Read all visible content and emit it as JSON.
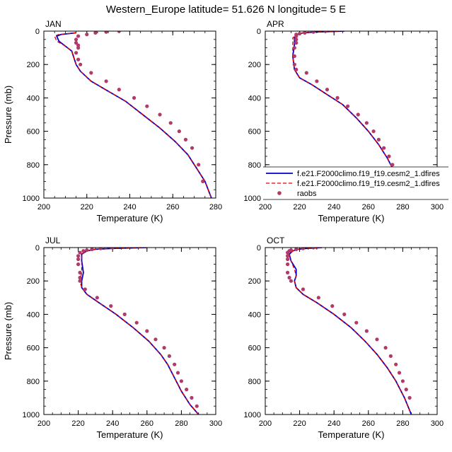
{
  "title": "Western_Europe  latitude= 51.626 N longitude= 5 E",
  "legend": {
    "entries": [
      {
        "label": "f.e21.F2000climo.f19_f19.cesm2_1.dfires",
        "color": "#0000cc",
        "style": "solid"
      },
      {
        "label": "f.e21.F2000climo.f19_f19.cesm2_1.dfires",
        "color": "#dd0000",
        "style": "dashed"
      },
      {
        "label": "raobs",
        "color": "#b03a6a",
        "style": "marker"
      }
    ]
  },
  "chart_data": [
    {
      "type": "line",
      "panel": "JAN",
      "title": "JAN",
      "xlabel": "Temperature (K)",
      "ylabel": "Pressure (mb)",
      "xlim": [
        200,
        280
      ],
      "ylim": [
        1000,
        0
      ],
      "xticks": [
        200,
        220,
        240,
        260,
        280
      ],
      "yticks": [
        0,
        200,
        400,
        600,
        800,
        1000
      ],
      "series": [
        {
          "name": "f.e21.F2000climo.f19_f19.cesm2_1.dfires",
          "color": "#0000cc",
          "style": "solid",
          "x": [
            215,
            208,
            206,
            207,
            210,
            213,
            214,
            215,
            217,
            222,
            230,
            238,
            246,
            254,
            261,
            267,
            271,
            275,
            278
          ],
          "y": [
            10,
            20,
            30,
            60,
            90,
            120,
            160,
            200,
            240,
            300,
            360,
            420,
            500,
            580,
            660,
            740,
            820,
            900,
            1000
          ]
        },
        {
          "name": "f.e21.F2000climo.f19_f19.cesm2_1.dfires",
          "color": "#dd0000",
          "style": "dashed",
          "x": [
            215,
            207,
            205,
            206,
            210,
            213,
            214,
            215,
            217,
            222,
            230,
            238,
            246,
            254,
            261,
            267,
            271,
            275,
            278
          ],
          "y": [
            10,
            20,
            30,
            60,
            90,
            120,
            160,
            200,
            240,
            300,
            360,
            420,
            500,
            580,
            660,
            740,
            820,
            900,
            1000
          ]
        },
        {
          "name": "raobs",
          "color": "#b03a6a",
          "style": "marker",
          "x": [
            235,
            229,
            224,
            220,
            216,
            215,
            215,
            216,
            216,
            215,
            216,
            217,
            222,
            229,
            235,
            242,
            248,
            254,
            259,
            263,
            266,
            269,
            272,
            274
          ],
          "y": [
            0,
            5,
            10,
            20,
            30,
            50,
            70,
            85,
            100,
            130,
            170,
            200,
            250,
            300,
            350,
            400,
            450,
            500,
            550,
            600,
            650,
            700,
            800,
            900
          ]
        }
      ]
    },
    {
      "type": "line",
      "panel": "APR",
      "title": "APR",
      "xlabel": "Temperature (K)",
      "ylabel": "",
      "xlim": [
        200,
        300
      ],
      "ylim": [
        1000,
        0
      ],
      "xticks": [
        200,
        220,
        240,
        260,
        280,
        300
      ],
      "yticks": [
        0,
        200,
        400,
        600,
        800,
        1000
      ],
      "series": [
        {
          "name": "f.e21.F2000climo.f19_f19.cesm2_1.dfires",
          "color": "#0000cc",
          "style": "solid",
          "x": [
            246,
            230,
            222,
            219,
            217,
            217,
            216,
            217,
            220,
            227,
            236,
            245,
            253,
            260,
            266,
            271,
            276,
            282
          ],
          "y": [
            0,
            5,
            10,
            20,
            40,
            80,
            150,
            230,
            280,
            320,
            380,
            440,
            520,
            600,
            680,
            760,
            860,
            1000
          ]
        },
        {
          "name": "f.e21.F2000climo.f19_f19.cesm2_1.dfires",
          "color": "#dd0000",
          "style": "dashed",
          "x": [
            246,
            230,
            222,
            219,
            216,
            216,
            216,
            217,
            220,
            227,
            236,
            245,
            253,
            260,
            266,
            271,
            276,
            282
          ],
          "y": [
            0,
            5,
            10,
            20,
            40,
            80,
            150,
            230,
            280,
            320,
            380,
            440,
            520,
            600,
            680,
            760,
            860,
            1000
          ]
        },
        {
          "name": "raobs",
          "color": "#b03a6a",
          "style": "marker",
          "x": [
            235,
            228,
            223,
            220,
            218,
            218,
            218,
            218,
            217,
            217,
            217,
            218,
            224,
            230,
            236,
            242,
            248,
            254,
            259,
            263,
            266,
            269,
            272,
            274,
            276,
            278,
            280
          ],
          "y": [
            0,
            5,
            10,
            15,
            20,
            30,
            50,
            70,
            100,
            150,
            200,
            230,
            250,
            300,
            350,
            400,
            450,
            500,
            550,
            600,
            650,
            700,
            750,
            800,
            850,
            900,
            950
          ]
        }
      ]
    },
    {
      "type": "line",
      "panel": "JUL",
      "title": "JUL",
      "xlabel": "Temperature (K)",
      "ylabel": "Pressure (mb)",
      "xlim": [
        200,
        300
      ],
      "ylim": [
        1000,
        0
      ],
      "xticks": [
        200,
        220,
        240,
        260,
        280,
        300
      ],
      "yticks": [
        0,
        200,
        400,
        600,
        800,
        1000
      ],
      "series": [
        {
          "name": "f.e21.F2000climo.f19_f19.cesm2_1.dfires",
          "color": "#0000cc",
          "style": "solid",
          "x": [
            260,
            240,
            230,
            225,
            222,
            222,
            223,
            222,
            222,
            225,
            232,
            242,
            252,
            261,
            268,
            272,
            276,
            280,
            285,
            290
          ],
          "y": [
            0,
            5,
            10,
            20,
            40,
            80,
            150,
            200,
            240,
            280,
            330,
            400,
            480,
            560,
            640,
            700,
            780,
            860,
            940,
            1000
          ]
        },
        {
          "name": "f.e21.F2000climo.f19_f19.cesm2_1.dfires",
          "color": "#dd0000",
          "style": "dashed",
          "x": [
            260,
            240,
            230,
            225,
            222,
            222,
            222,
            221,
            222,
            225,
            232,
            242,
            252,
            261,
            268,
            272,
            276,
            280,
            285,
            290
          ],
          "y": [
            0,
            5,
            10,
            20,
            40,
            80,
            150,
            200,
            240,
            280,
            330,
            400,
            480,
            560,
            640,
            700,
            780,
            860,
            940,
            1000
          ]
        },
        {
          "name": "raobs",
          "color": "#b03a6a",
          "style": "marker",
          "x": [
            240,
            233,
            228,
            225,
            223,
            221,
            220,
            220,
            220,
            221,
            221,
            221,
            224,
            231,
            239,
            247,
            254,
            260,
            265,
            270,
            273,
            276,
            278,
            280,
            283,
            286,
            289
          ],
          "y": [
            0,
            5,
            10,
            15,
            20,
            30,
            50,
            70,
            100,
            150,
            180,
            200,
            250,
            300,
            350,
            400,
            450,
            500,
            550,
            600,
            650,
            700,
            750,
            800,
            850,
            900,
            950
          ]
        }
      ]
    },
    {
      "type": "line",
      "panel": "OCT",
      "title": "OCT",
      "xlabel": "Temperature (K)",
      "ylabel": "",
      "xlim": [
        200,
        300
      ],
      "ylim": [
        1000,
        0
      ],
      "xticks": [
        200,
        220,
        240,
        260,
        280,
        300
      ],
      "yticks": [
        0,
        200,
        400,
        600,
        800,
        1000
      ],
      "series": [
        {
          "name": "f.e21.F2000climo.f19_f19.cesm2_1.dfires",
          "color": "#0000cc",
          "style": "solid",
          "x": [
            233,
            224,
            219,
            216,
            214,
            215,
            218,
            218,
            217,
            218,
            222,
            230,
            240,
            250,
            258,
            265,
            271,
            276,
            281,
            285
          ],
          "y": [
            0,
            5,
            10,
            20,
            40,
            80,
            130,
            170,
            200,
            240,
            280,
            330,
            400,
            480,
            560,
            640,
            720,
            800,
            900,
            1000
          ]
        },
        {
          "name": "f.e21.F2000climo.f19_f19.cesm2_1.dfires",
          "color": "#dd0000",
          "style": "dashed",
          "x": [
            233,
            224,
            219,
            216,
            214,
            215,
            217,
            218,
            217,
            218,
            222,
            230,
            240,
            250,
            258,
            265,
            271,
            276,
            281,
            285
          ],
          "y": [
            0,
            5,
            10,
            20,
            40,
            80,
            130,
            170,
            200,
            240,
            280,
            330,
            400,
            480,
            560,
            640,
            720,
            800,
            900,
            1000
          ]
        },
        {
          "name": "raobs",
          "color": "#b03a6a",
          "style": "marker",
          "x": [
            228,
            222,
            218,
            215,
            214,
            213,
            213,
            213,
            213,
            213,
            214,
            215,
            222,
            231,
            239,
            246,
            253,
            259,
            265,
            270,
            273,
            276,
            278,
            280,
            282,
            284
          ],
          "y": [
            0,
            5,
            10,
            15,
            20,
            30,
            50,
            70,
            100,
            150,
            180,
            200,
            250,
            300,
            350,
            400,
            450,
            500,
            550,
            600,
            650,
            700,
            750,
            800,
            850,
            900
          ]
        }
      ]
    }
  ]
}
